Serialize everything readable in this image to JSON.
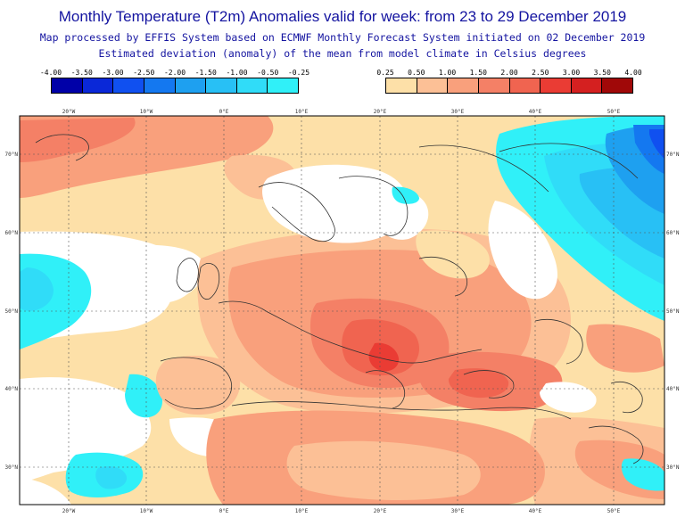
{
  "header": {
    "title": "Monthly Temperature (T2m) Anomalies valid for week: from 23 to 29 December 2019",
    "subtitle1": "Map processed by EFFIS System based on ECMWF Monthly Forecast System initiated on 02 December 2019",
    "subtitle2": "Estimated deviation (anomaly) of the mean from model climate in Celsius degrees"
  },
  "legend_cold": {
    "labels": [
      "-4.00",
      "-3.50",
      "-3.00",
      "-2.50",
      "-2.00",
      "-1.50",
      "-1.00",
      "-0.50",
      "-0.25"
    ],
    "colors": [
      "#0000a8",
      "#0a28d8",
      "#1050f0",
      "#1478f0",
      "#1ea0f0",
      "#28c0f5",
      "#30dcf8",
      "#30f0f8"
    ]
  },
  "legend_warm": {
    "labels": [
      "0.25",
      "0.50",
      "1.00",
      "1.50",
      "2.00",
      "2.50",
      "3.00",
      "3.50",
      "4.00"
    ],
    "colors": [
      "#fde0a8",
      "#fcc096",
      "#f9a07c",
      "#f48066",
      "#f06450",
      "#ea3c34",
      "#d42020",
      "#a00808"
    ]
  },
  "map": {
    "lon_labels": [
      "20°W",
      "10°W",
      "0°E",
      "10°E",
      "20°E",
      "30°E",
      "40°E",
      "50°E"
    ],
    "lat_labels": [
      "70°N",
      "60°N",
      "50°N",
      "40°N",
      "30°N"
    ]
  }
}
